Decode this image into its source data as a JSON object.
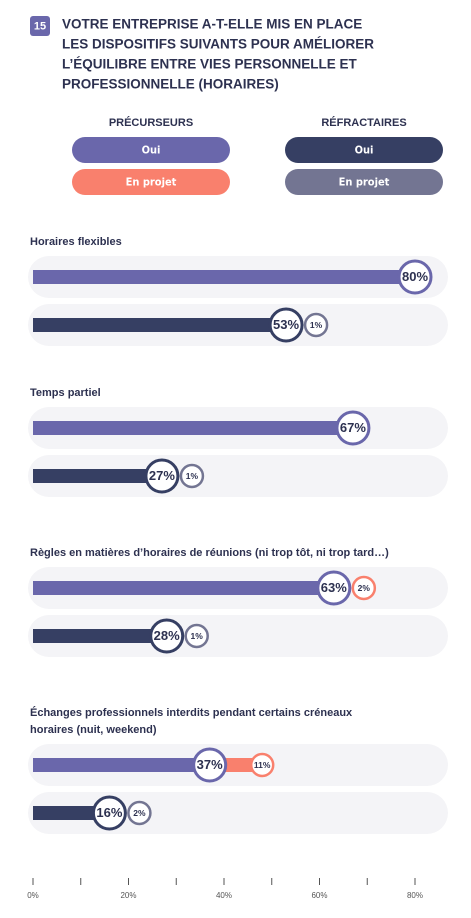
{
  "chart_data": {
    "type": "bar",
    "badge": "15",
    "title": [
      "VOTRE ENTREPRISE A-T-ELLE MIS EN PLACE",
      "LES DISPOSITIFS SUIVANTS POUR AMÉLIORER",
      "L’ÉQUILIBRE ENTRE VIES PERSONNELLE ET",
      "PROFESSIONNELLE (HORAIRES)"
    ],
    "categories": [
      [
        "Horaires flexibles"
      ],
      [
        "Temps partiel"
      ],
      [
        "Règles en matières d’horaires de réunions (ni trop tôt, ni trop tard…)"
      ],
      [
        "Échanges professionnels interdits pendant certains créneaux",
        "horaires (nuit, weekend)"
      ]
    ],
    "groups": [
      {
        "name": "PRÉCURSEURS",
        "series": [
          {
            "name": "Oui",
            "color": "#6a67ab",
            "values": [
              80,
              67,
              63,
              37
            ],
            "value_labels": [
              "80%",
              "67%",
              "63%",
              "37%"
            ]
          },
          {
            "name": "En projet",
            "color": "#f9806d",
            "values": [
              null,
              null,
              2,
              11
            ],
            "value_labels": [
              null,
              null,
              "2%",
              "11%"
            ]
          }
        ]
      },
      {
        "name": "RÉFRACTAIRES",
        "series": [
          {
            "name": "Oui",
            "color": "#363f63",
            "values": [
              53,
              27,
              28,
              16
            ],
            "value_labels": [
              "53%",
              "27%",
              "28%",
              "16%"
            ]
          },
          {
            "name": "En projet",
            "color": "#737592",
            "values": [
              1,
              1,
              1,
              2
            ],
            "value_labels": [
              "1%",
              "1%",
              "1%",
              "2%"
            ]
          }
        ]
      }
    ],
    "xlim": [
      0,
      80
    ],
    "xticks": [
      {
        "value": 0,
        "label": "0%"
      },
      {
        "value": 20,
        "label": "20%"
      },
      {
        "value": 40,
        "label": "40%"
      },
      {
        "value": 60,
        "label": "60%"
      },
      {
        "value": 80,
        "label": "80%"
      }
    ],
    "minor_xticks": [
      10,
      30,
      50,
      70
    ]
  }
}
